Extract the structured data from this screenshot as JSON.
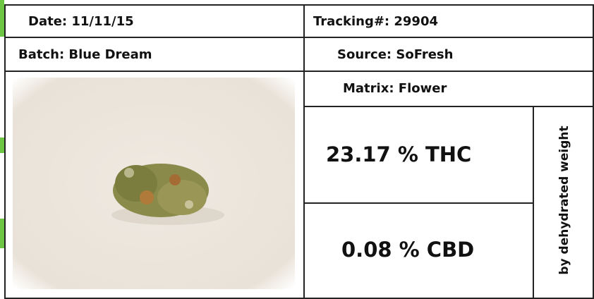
{
  "header": {
    "date": "Date: 11/11/15",
    "tracking": "Tracking#: 29904",
    "batch": "Batch: Blue Dream",
    "source": "Source: SoFresh",
    "matrix": "Matrix: Flower"
  },
  "results": {
    "thc": "23.17 % THC",
    "cbd": "0.08 % CBD",
    "note": "by dehydrated weight"
  }
}
